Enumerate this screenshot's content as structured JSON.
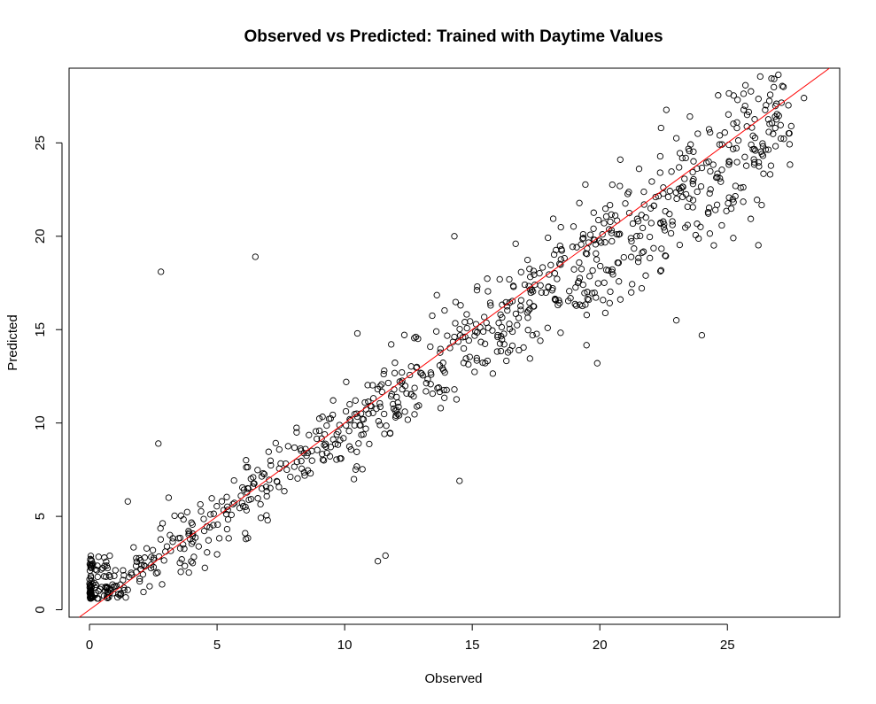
{
  "chart_data": {
    "type": "scatter",
    "title": "Observed vs Predicted: Trained with Daytime Values",
    "xlabel": "Observed",
    "ylabel": "Predicted",
    "xlim": [
      -0.8,
      29.4
    ],
    "ylim": [
      -0.4,
      29.0
    ],
    "xticks": [
      0,
      5,
      10,
      15,
      20,
      25
    ],
    "yticks": [
      0,
      5,
      10,
      15,
      20,
      25
    ],
    "grid": false,
    "reference_line": {
      "slope": 1,
      "intercept": 0,
      "color": "#ff0000"
    },
    "marker_color": "#000000",
    "outliers": [
      [
        2.8,
        18.1
      ],
      [
        6.5,
        18.9
      ],
      [
        2.7,
        8.9
      ],
      [
        14.5,
        6.9
      ],
      [
        14.3,
        20.0
      ],
      [
        27.2,
        28.0
      ],
      [
        28.0,
        27.4
      ],
      [
        22.4,
        25.8
      ],
      [
        24.7,
        25.4
      ],
      [
        1.5,
        5.8
      ],
      [
        11.3,
        2.6
      ],
      [
        11.6,
        2.9
      ],
      [
        24.0,
        14.7
      ],
      [
        19.9,
        13.2
      ],
      [
        3.1,
        6.0
      ],
      [
        10.5,
        14.8
      ],
      [
        20.8,
        24.1
      ],
      [
        27.5,
        25.9
      ],
      [
        23.0,
        15.5
      ],
      [
        6.1,
        4.1
      ]
    ],
    "near_zero_cluster": {
      "x_range": [
        0.0,
        1.0
      ],
      "y_range": [
        0.6,
        2.9
      ],
      "count": 90
    },
    "main_cloud": {
      "x_range": [
        0.5,
        27.5
      ],
      "relation": "y ≈ x",
      "count": 820
    }
  }
}
